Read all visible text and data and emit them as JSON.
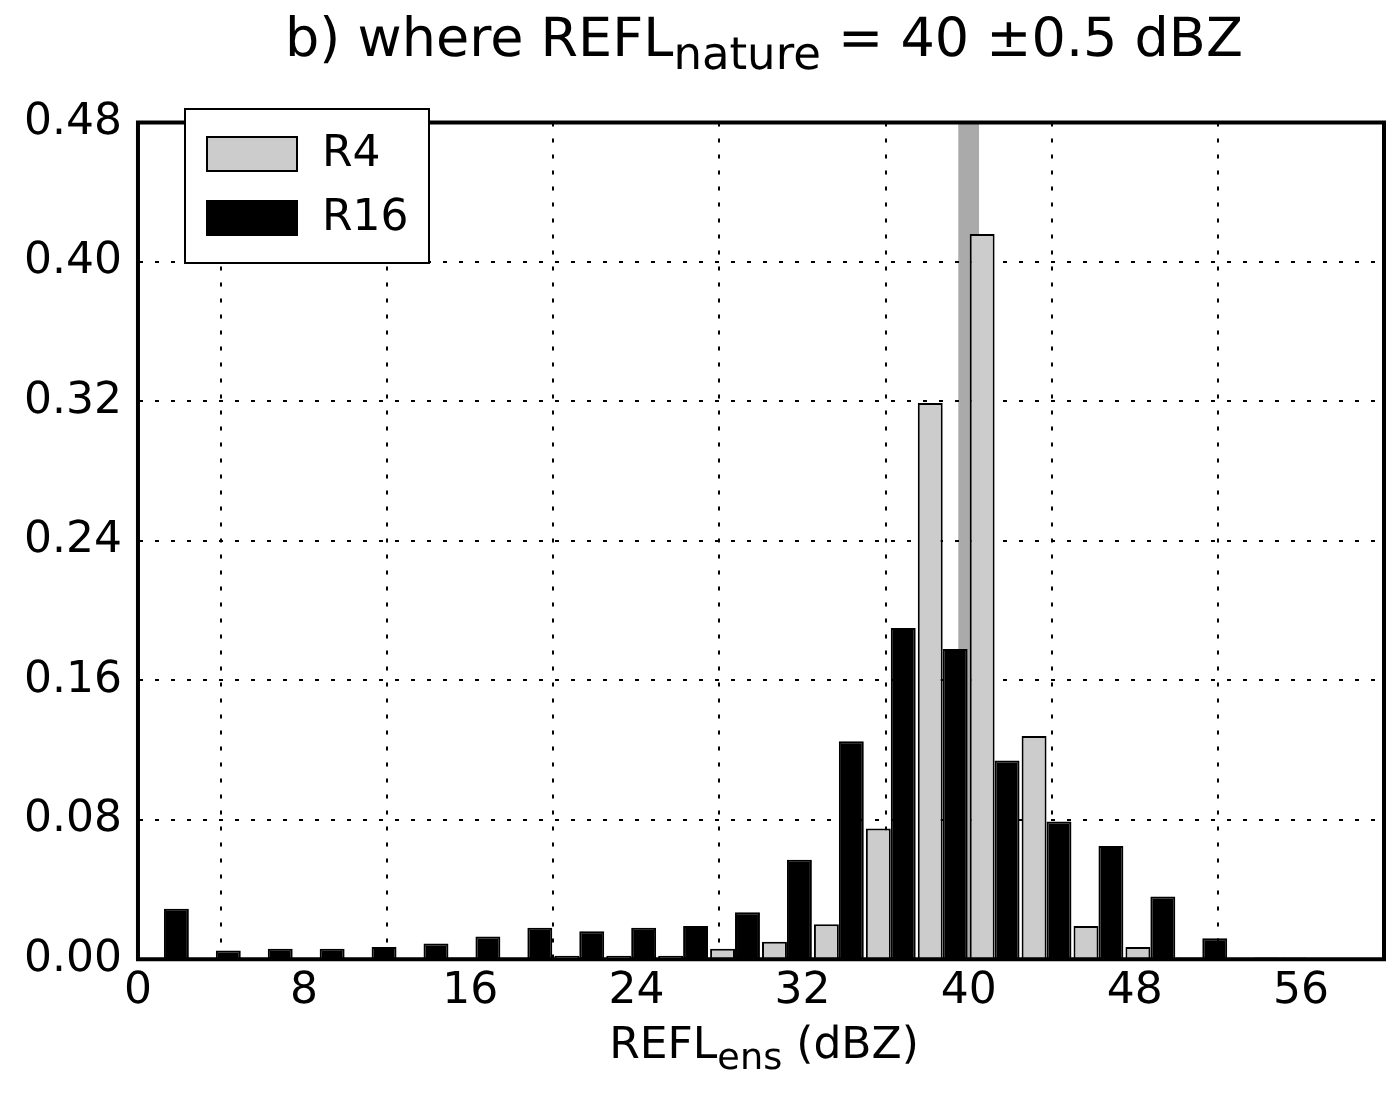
{
  "chart_data": {
    "type": "histogram",
    "title": "b) where REFL$_{nature}$ = 40 ±0.5 dBZ",
    "xlabel": "REFL$_{ens}$ (dBZ)",
    "bins": [
      0,
      2.5,
      5,
      7.5,
      10,
      12.5,
      15,
      17.5,
      20,
      22.5,
      25,
      27.5,
      30,
      32.5,
      35,
      37.5,
      40,
      42.5,
      45,
      47.5,
      50,
      52.5,
      55,
      57.5,
      60
    ],
    "series": [
      {
        "name": "R4",
        "color": "#cccccc",
        "values": [
          0,
          0,
          0,
          0,
          0,
          0,
          0.001,
          0,
          0.002,
          0.002,
          0.002,
          0.006,
          0.01,
          0.02,
          0.075,
          0.319,
          0.416,
          0.128,
          0.019,
          0.007,
          0.001,
          0,
          0.001,
          0
        ]
      },
      {
        "name": "R16",
        "color": "#000000",
        "values": [
          0.029,
          0.005,
          0.006,
          0.006,
          0.007,
          0.009,
          0.013,
          0.018,
          0.016,
          0.018,
          0.019,
          0.027,
          0.057,
          0.125,
          0.19,
          0.178,
          0.114,
          0.079,
          0.065,
          0.036,
          0.012,
          0.001,
          0,
          0
        ]
      }
    ],
    "xlim": [
      0,
      60
    ],
    "xticks": [
      0,
      8,
      16,
      24,
      32,
      40,
      48,
      56
    ],
    "ylim": [
      0,
      0.48
    ],
    "yticks": [
      {
        "value": 0,
        "label": "0.00"
      },
      0.08,
      0.16,
      0.24,
      0.32,
      {
        "value": 0.4,
        "label": "0.40"
      },
      0.48
    ],
    "bands": [
      {
        "axis": "x",
        "from": 39.5,
        "to": 40.5,
        "color": "#aaaaaa"
      }
    ],
    "grid": true,
    "legend": "top left"
  }
}
